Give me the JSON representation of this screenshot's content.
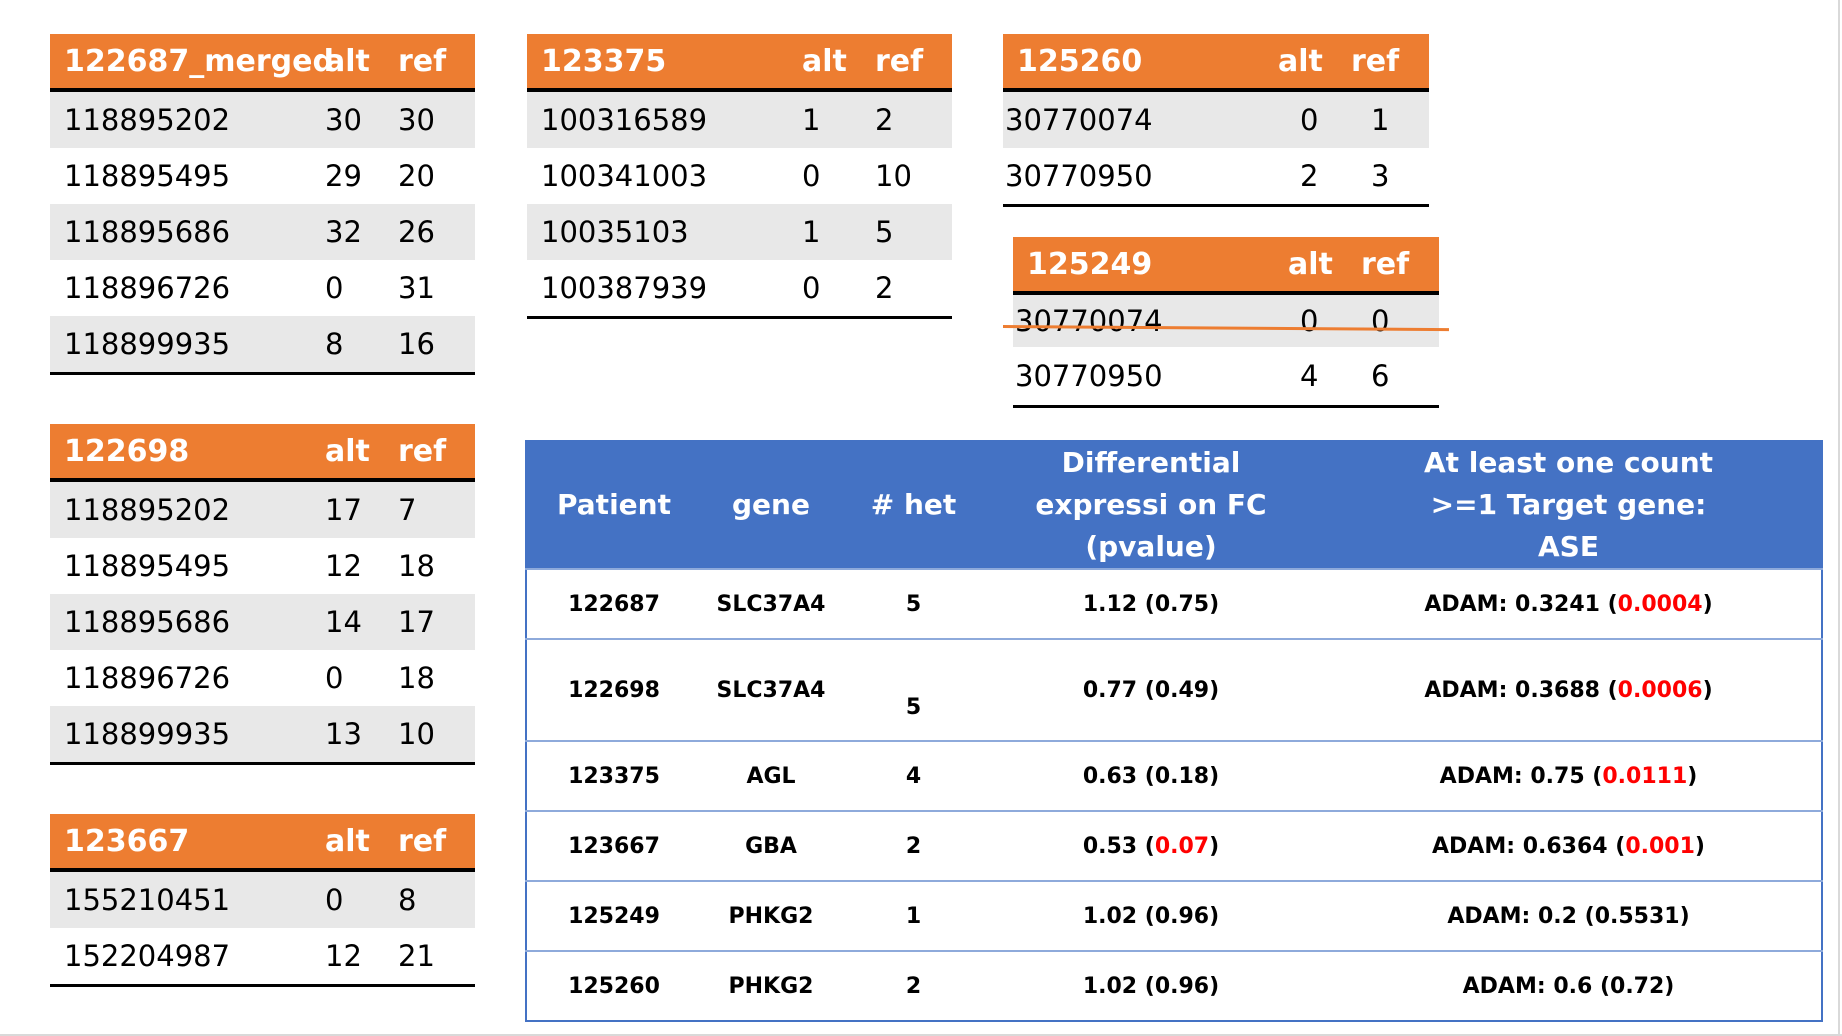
{
  "small_tables": [
    {
      "id": "122687_merged",
      "headers": [
        "122687_merged",
        "alt",
        "ref"
      ],
      "rows": [
        [
          "118895202",
          "30",
          "30"
        ],
        [
          "118895495",
          "29",
          "20"
        ],
        [
          "118895686",
          "32",
          "26"
        ],
        [
          "118896726",
          "0",
          "31"
        ],
        [
          "118899935",
          "8",
          "16"
        ]
      ]
    },
    {
      "id": "122698",
      "headers": [
        "122698",
        "alt",
        "ref"
      ],
      "rows": [
        [
          "118895202",
          "17",
          "7"
        ],
        [
          "118895495",
          "12",
          "18"
        ],
        [
          "118895686",
          "14",
          "17"
        ],
        [
          "118896726",
          "0",
          "18"
        ],
        [
          "118899935",
          "13",
          "10"
        ]
      ]
    },
    {
      "id": "123667",
      "headers": [
        "123667",
        "alt",
        "ref"
      ],
      "rows": [
        [
          "155210451",
          "0",
          "8"
        ],
        [
          "152204987",
          "12",
          "21"
        ]
      ]
    },
    {
      "id": "123375",
      "headers": [
        "123375",
        "alt",
        "ref"
      ],
      "rows": [
        [
          "100316589",
          "1",
          "2"
        ],
        [
          "100341003",
          "0",
          "10"
        ],
        [
          "10035103",
          "1",
          "5"
        ],
        [
          "100387939",
          "0",
          "2"
        ]
      ]
    },
    {
      "id": "125260",
      "headers": [
        "125260",
        "alt",
        "ref"
      ],
      "rows": [
        [
          "30770074",
          "0",
          "1"
        ],
        [
          "30770950",
          "2",
          "3"
        ]
      ]
    },
    {
      "id": "125249",
      "headers": [
        "125249",
        "alt",
        "ref"
      ],
      "rows": [
        [
          "30770074",
          "0",
          "0"
        ],
        [
          "30770950",
          "4",
          "6"
        ]
      ],
      "struck_row_index": 0
    }
  ],
  "summary_table": {
    "header_color": "#4472c4",
    "headers": [
      "Patient",
      "gene",
      "# het",
      "Differential expressi on FC (pvalue)",
      "At least one count >=1 Target gene: ASE"
    ],
    "rows": [
      {
        "patient": "122687",
        "gene": "SLC37A4",
        "het": "5",
        "fc": "1.12",
        "fc_p": "0.75",
        "fc_p_significant": false,
        "ase_gene": "ADAM",
        "ase_value": "0.3241",
        "ase_p": "0.0004",
        "ase_p_significant": true
      },
      {
        "patient": "122698",
        "gene": "SLC37A4",
        "het": "5",
        "fc": "0.77",
        "fc_p": "0.49",
        "fc_p_significant": false,
        "ase_gene": "ADAM",
        "ase_value": "0.3688",
        "ase_p": "0.0006",
        "ase_p_significant": true
      },
      {
        "patient": "123375",
        "gene": "AGL",
        "het": "4",
        "fc": "0.63",
        "fc_p": "0.18",
        "fc_p_significant": false,
        "ase_gene": "ADAM",
        "ase_value": "0.75",
        "ase_p": "0.0111",
        "ase_p_significant": true
      },
      {
        "patient": "123667",
        "gene": "GBA",
        "het": "2",
        "fc": "0.53",
        "fc_p": "0.07",
        "fc_p_significant": true,
        "ase_gene": "ADAM",
        "ase_value": "0.6364",
        "ase_p": "0.001",
        "ase_p_significant": true
      },
      {
        "patient": "125249",
        "gene": "PHKG2",
        "het": "1",
        "fc": "1.02",
        "fc_p": "0.96",
        "fc_p_significant": false,
        "ase_gene": "ADAM",
        "ase_value": "0.2",
        "ase_p": "0.5531",
        "ase_p_significant": false
      },
      {
        "patient": "125260",
        "gene": "PHKG2",
        "het": "2",
        "fc": "1.02",
        "fc_p": "0.96",
        "fc_p_significant": false,
        "ase_gene": "ADAM",
        "ase_value": "0.6",
        "ase_p": "0.72",
        "ase_p_significant": false
      }
    ]
  },
  "colors": {
    "orange_header": "#ed7d31",
    "blue_header": "#4472c4",
    "row_shade": "#e8e8e8",
    "significant": "#ff0000"
  }
}
